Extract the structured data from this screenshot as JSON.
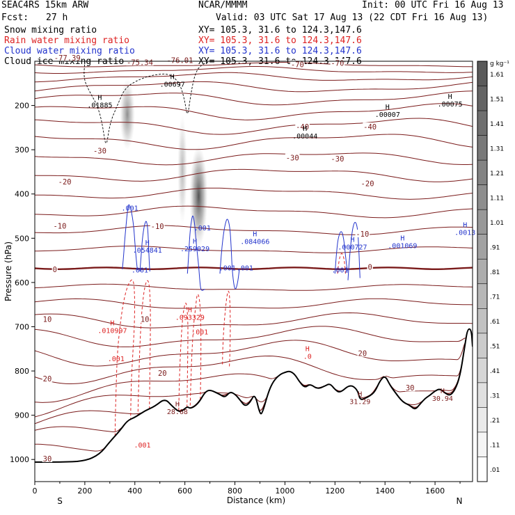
{
  "header": {
    "model": "SEAC4RS 15km ARW",
    "center": "NCAR/MMMM",
    "init": "Init: 00 UTC Fri 16 Aug 13",
    "fcst_label": "Fcst:",
    "fcst_value": "27 h",
    "valid": "Valid: 03 UTC Sat 17 Aug 13 (22 CDT Fri 16 Aug 13)"
  },
  "legend": [
    {
      "name": "Snow mixing ratio",
      "xy": "XY= 105.3, 31.6 to 124.3,147.6",
      "color": "#000000"
    },
    {
      "name": "Rain water mixing ratio",
      "xy": "XY= 105.3, 31.6 to 124.3,147.6",
      "color": "#dd2222"
    },
    {
      "name": "Cloud water mixing ratio",
      "xy": "XY= 105.3, 31.6 to 124.3,147.6",
      "color": "#2233cc"
    },
    {
      "name": "Cloud ice mixing ratio",
      "xy": "XY= 105.3, 31.6 to 124.3,147.6",
      "color": "#000000"
    }
  ],
  "colors": {
    "temperature": "#7a1a1a",
    "rain": "#dd2222",
    "cloud": "#2233cc",
    "terrain": "#000000"
  },
  "chart_data": {
    "type": "cross-section",
    "xlabel": "Distance (km)",
    "ylabel": "Pressure (hPa)",
    "xlim": [
      0,
      1750
    ],
    "ylim": [
      1050,
      100
    ],
    "x_ticks": [
      0,
      200,
      400,
      600,
      800,
      1000,
      1200,
      1400,
      1600
    ],
    "y_ticks": [
      200,
      300,
      400,
      500,
      600,
      700,
      800,
      900,
      1000
    ],
    "end_labels": {
      "left": "S",
      "right": "N"
    },
    "colorbar": {
      "unit": "g kg⁻¹",
      "ticks": [
        "1.61",
        "1.51",
        "1.41",
        "1.31",
        "1.21",
        "1.11",
        "1.01",
        ".91",
        ".81",
        ".71",
        ".61",
        ".51",
        ".41",
        ".31",
        ".21",
        ".11",
        ".01"
      ]
    },
    "temperature_labels": [
      {
        "x": 130,
        "p": 92,
        "text": "-77.39"
      },
      {
        "x": 420,
        "p": 102,
        "text": "-75.34"
      },
      {
        "x": 580,
        "p": 98,
        "text": "-76.01"
      },
      {
        "x": 1050,
        "p": 107,
        "text": "-70"
      },
      {
        "x": 1210,
        "p": 104,
        "text": "-70"
      },
      {
        "x": 1070,
        "p": 248,
        "text": "-40"
      },
      {
        "x": 1340,
        "p": 248,
        "text": "-40"
      },
      {
        "x": 260,
        "p": 302,
        "text": "-30"
      },
      {
        "x": 1030,
        "p": 318,
        "text": "-30"
      },
      {
        "x": 1210,
        "p": 320,
        "text": "-30"
      },
      {
        "x": 120,
        "p": 372,
        "text": "-20"
      },
      {
        "x": 1330,
        "p": 376,
        "text": "-20"
      },
      {
        "x": 100,
        "p": 472,
        "text": "-10"
      },
      {
        "x": 490,
        "p": 473,
        "text": "-10"
      },
      {
        "x": 1310,
        "p": 490,
        "text": "-10"
      },
      {
        "x": 80,
        "p": 570,
        "text": "0"
      },
      {
        "x": 1340,
        "p": 565,
        "text": "0"
      },
      {
        "x": 440,
        "p": 683,
        "text": "10"
      },
      {
        "x": 50,
        "p": 683,
        "text": "10"
      },
      {
        "x": 1310,
        "p": 760,
        "text": "20"
      },
      {
        "x": 510,
        "p": 805,
        "text": "20"
      },
      {
        "x": 50,
        "p": 817,
        "text": "20"
      },
      {
        "x": 1500,
        "p": 838,
        "text": "30"
      },
      {
        "x": 50,
        "p": 998,
        "text": "30"
      }
    ],
    "extrema_labels": [
      {
        "x": 260,
        "p": 192,
        "h": "H",
        "value": ".01885",
        "color": "black"
      },
      {
        "x": 550,
        "p": 145,
        "h": "H",
        "value": ".00697",
        "color": "black"
      },
      {
        "x": 1080,
        "p": 262,
        "h": "H",
        "value": ".00044",
        "color": "black"
      },
      {
        "x": 1410,
        "p": 213,
        "h": "H",
        "value": ".00007",
        "color": "black"
      },
      {
        "x": 1660,
        "p": 190,
        "h": "H",
        "value": ".00075",
        "color": "black"
      },
      {
        "x": 380,
        "p": 425,
        "h": "",
        "value": ".001",
        "color": "blue"
      },
      {
        "x": 450,
        "p": 520,
        "h": "H",
        "value": ".054841",
        "color": "blue"
      },
      {
        "x": 420,
        "p": 565,
        "h": "",
        "value": ".001",
        "color": "blue"
      },
      {
        "x": 640,
        "p": 517,
        "h": "H",
        "value": ".259029",
        "color": "blue"
      },
      {
        "x": 670,
        "p": 470,
        "h": "",
        "value": ".001",
        "color": "blue"
      },
      {
        "x": 880,
        "p": 500,
        "h": "H",
        "value": ".084066",
        "color": "blue"
      },
      {
        "x": 770,
        "p": 560,
        "h": "",
        "value": ".001",
        "color": "blue"
      },
      {
        "x": 840,
        "p": 560,
        "h": "",
        "value": ".001",
        "color": "blue"
      },
      {
        "x": 1220,
        "p": 565,
        "h": "",
        "value": ".001",
        "color": "blue"
      },
      {
        "x": 1270,
        "p": 513,
        "h": "H",
        "value": ".000727",
        "color": "blue"
      },
      {
        "x": 1470,
        "p": 510,
        "h": "H",
        "value": ".001069",
        "color": "blue"
      },
      {
        "x": 1720,
        "p": 480,
        "h": "H",
        "value": ".0013",
        "color": "blue"
      },
      {
        "x": 310,
        "p": 702,
        "h": "H",
        "value": ".010997",
        "color": "red"
      },
      {
        "x": 620,
        "p": 672,
        "h": "H",
        "value": ".093329",
        "color": "red"
      },
      {
        "x": 660,
        "p": 705,
        "h": "",
        "value": ".001",
        "color": "red"
      },
      {
        "x": 325,
        "p": 765,
        "h": "",
        "value": ".001",
        "color": "red"
      },
      {
        "x": 430,
        "p": 960,
        "h": "",
        "value": ".001",
        "color": "red"
      },
      {
        "x": 1090,
        "p": 760,
        "h": "H",
        "value": ".0",
        "color": "red"
      },
      {
        "x": 570,
        "p": 885,
        "h": "H",
        "value": "28.68",
        "color": "brown"
      },
      {
        "x": 1300,
        "p": 862,
        "h": "H",
        "value": "31.29",
        "color": "brown"
      },
      {
        "x": 1630,
        "p": 855,
        "h": "H",
        "value": "30.94",
        "color": "brown"
      }
    ],
    "terrain_pressure": [
      [
        0,
        1006
      ],
      [
        100,
        1006
      ],
      [
        200,
        1004
      ],
      [
        260,
        988
      ],
      [
        300,
        960
      ],
      [
        340,
        935
      ],
      [
        370,
        912
      ],
      [
        400,
        905
      ],
      [
        440,
        890
      ],
      [
        480,
        880
      ],
      [
        520,
        862
      ],
      [
        550,
        880
      ],
      [
        575,
        892
      ],
      [
        590,
        890
      ],
      [
        610,
        880
      ],
      [
        620,
        885
      ],
      [
        640,
        880
      ],
      [
        660,
        868
      ],
      [
        680,
        848
      ],
      [
        700,
        842
      ],
      [
        740,
        853
      ],
      [
        760,
        860
      ],
      [
        780,
        847
      ],
      [
        800,
        852
      ],
      [
        820,
        865
      ],
      [
        840,
        880
      ],
      [
        860,
        872
      ],
      [
        880,
        850
      ],
      [
        900,
        898
      ],
      [
        910,
        895
      ],
      [
        935,
        845
      ],
      [
        955,
        822
      ],
      [
        980,
        808
      ],
      [
        1000,
        803
      ],
      [
        1020,
        800
      ],
      [
        1040,
        808
      ],
      [
        1060,
        826
      ],
      [
        1080,
        838
      ],
      [
        1100,
        829
      ],
      [
        1130,
        841
      ],
      [
        1160,
        834
      ],
      [
        1180,
        828
      ],
      [
        1200,
        842
      ],
      [
        1220,
        850
      ],
      [
        1260,
        830
      ],
      [
        1290,
        842
      ],
      [
        1300,
        866
      ],
      [
        1320,
        862
      ],
      [
        1340,
        856
      ],
      [
        1360,
        847
      ],
      [
        1380,
        822
      ],
      [
        1400,
        810
      ],
      [
        1420,
        832
      ],
      [
        1440,
        848
      ],
      [
        1470,
        870
      ],
      [
        1500,
        878
      ],
      [
        1520,
        888
      ],
      [
        1540,
        875
      ],
      [
        1560,
        862
      ],
      [
        1580,
        855
      ],
      [
        1600,
        845
      ],
      [
        1620,
        840
      ],
      [
        1640,
        850
      ],
      [
        1660,
        856
      ],
      [
        1680,
        843
      ],
      [
        1700,
        812
      ],
      [
        1720,
        740
      ],
      [
        1730,
        705
      ],
      [
        1745,
        705
      ],
      [
        1750,
        745
      ]
    ],
    "zero_isotherm_pressure": 568,
    "temperature_isotherms": [
      {
        "p0": 108,
        "amp": 4
      },
      {
        "p0": 120,
        "amp": 6
      },
      {
        "p0": 136,
        "amp": 8
      },
      {
        "p0": 158,
        "amp": 10
      },
      {
        "p0": 184,
        "amp": 12
      },
      {
        "p0": 214,
        "amp": 14
      },
      {
        "p0": 246,
        "amp": 14
      },
      {
        "p0": 280,
        "amp": 14
      },
      {
        "p0": 318,
        "amp": 12
      },
      {
        "p0": 356,
        "amp": 12
      },
      {
        "p0": 398,
        "amp": 10
      },
      {
        "p0": 440,
        "amp": 10
      },
      {
        "p0": 482,
        "amp": 8
      },
      {
        "p0": 526,
        "amp": 6
      },
      {
        "p0": 612,
        "amp": 6
      },
      {
        "p0": 650,
        "amp": 10
      },
      {
        "p0": 688,
        "amp": 14
      },
      {
        "p0": 724,
        "amp": 18
      },
      {
        "p0": 760,
        "amp": 22
      },
      {
        "p0": 796,
        "amp": 24
      },
      {
        "p0": 835,
        "amp": 26
      },
      {
        "p0": 873,
        "amp": 26
      },
      {
        "p0": 912,
        "amp": 24
      },
      {
        "p0": 950,
        "amp": 22
      },
      {
        "p0": 988,
        "amp": 18
      }
    ],
    "cloud_ice_shading": [
      {
        "x": 370,
        "p_top": 140,
        "p_bot": 300,
        "w": 22,
        "strength": 0.55
      },
      {
        "x": 590,
        "p_top": 220,
        "p_bot": 470,
        "w": 14,
        "strength": 0.35
      },
      {
        "x": 655,
        "p_top": 290,
        "p_bot": 520,
        "w": 26,
        "strength": 0.85
      }
    ],
    "snow_contour": [
      [
        200,
        100
      ],
      [
        195,
        140
      ],
      [
        220,
        170
      ],
      [
        250,
        200
      ],
      [
        270,
        240
      ],
      [
        285,
        300
      ],
      [
        300,
        240
      ],
      [
        330,
        200
      ],
      [
        360,
        160
      ],
      [
        420,
        140
      ],
      [
        480,
        130
      ],
      [
        540,
        128
      ],
      [
        580,
        150
      ],
      [
        600,
        190
      ],
      [
        610,
        230
      ],
      [
        625,
        170
      ],
      [
        640,
        130
      ],
      [
        660,
        110
      ],
      [
        700,
        100
      ]
    ],
    "cloud_water_contours": [
      [
        [
          350,
          570
        ],
        [
          355,
          540
        ],
        [
          360,
          500
        ],
        [
          365,
          470
        ],
        [
          370,
          440
        ],
        [
          375,
          420
        ],
        [
          385,
          435
        ],
        [
          395,
          470
        ],
        [
          400,
          510
        ],
        [
          405,
          545
        ],
        [
          410,
          572
        ]
      ],
      [
        [
          420,
          575
        ],
        [
          425,
          540
        ],
        [
          430,
          500
        ],
        [
          438,
          470
        ],
        [
          446,
          458
        ],
        [
          452,
          480
        ],
        [
          455,
          520
        ],
        [
          458,
          560
        ],
        [
          460,
          575
        ]
      ],
      [
        [
          610,
          580
        ],
        [
          615,
          540
        ],
        [
          620,
          490
        ],
        [
          626,
          460
        ],
        [
          632,
          445
        ],
        [
          640,
          470
        ],
        [
          645,
          510
        ],
        [
          655,
          560
        ],
        [
          660,
          600
        ],
        [
          665,
          620
        ],
        [
          680,
          615
        ]
      ],
      [
        [
          740,
          580
        ],
        [
          745,
          540
        ],
        [
          752,
          500
        ],
        [
          760,
          470
        ],
        [
          770,
          452
        ],
        [
          780,
          475
        ],
        [
          785,
          520
        ],
        [
          790,
          580
        ],
        [
          800,
          620
        ],
        [
          810,
          605
        ],
        [
          818,
          570
        ]
      ],
      [
        [
          1200,
          580
        ],
        [
          1205,
          540
        ],
        [
          1212,
          500
        ],
        [
          1225,
          480
        ],
        [
          1235,
          500
        ],
        [
          1242,
          540
        ],
        [
          1250,
          575
        ]
      ],
      [
        [
          1252,
          595
        ],
        [
          1256,
          560
        ],
        [
          1262,
          520
        ],
        [
          1270,
          478
        ],
        [
          1280,
          460
        ],
        [
          1290,
          475
        ],
        [
          1295,
          520
        ],
        [
          1298,
          560
        ],
        [
          1300,
          590
        ]
      ]
    ],
    "rain_contours": [
      [
        [
          320,
          980
        ],
        [
          322,
          900
        ],
        [
          326,
          820
        ],
        [
          330,
          760
        ],
        [
          340,
          700
        ],
        [
          355,
          640
        ],
        [
          375,
          600
        ],
        [
          395,
          590
        ],
        [
          400,
          640
        ],
        [
          398,
          700
        ],
        [
          392,
          760
        ],
        [
          386,
          820
        ],
        [
          383,
          900
        ],
        [
          382,
          980
        ]
      ],
      [
        [
          410,
          980
        ],
        [
          412,
          900
        ],
        [
          416,
          820
        ],
        [
          420,
          740
        ],
        [
          428,
          660
        ],
        [
          440,
          605
        ],
        [
          455,
          590
        ],
        [
          462,
          640
        ],
        [
          462,
          720
        ],
        [
          460,
          800
        ],
        [
          458,
          900
        ],
        [
          456,
          980
        ]
      ],
      [
        [
          575,
          900
        ],
        [
          578,
          820
        ],
        [
          582,
          760
        ],
        [
          588,
          700
        ],
        [
          595,
          660
        ],
        [
          605,
          640
        ],
        [
          612,
          680
        ],
        [
          612,
          740
        ],
        [
          610,
          820
        ],
        [
          608,
          900
        ]
      ],
      [
        [
          620,
          900
        ],
        [
          624,
          820
        ],
        [
          628,
          760
        ],
        [
          634,
          700
        ],
        [
          642,
          660
        ],
        [
          650,
          620
        ],
        [
          660,
          640
        ],
        [
          664,
          700
        ],
        [
          664,
          780
        ],
        [
          662,
          860
        ],
        [
          660,
          900
        ]
      ],
      [
        [
          750,
          785
        ],
        [
          752,
          740
        ],
        [
          756,
          700
        ],
        [
          762,
          660
        ],
        [
          768,
          630
        ],
        [
          775,
          615
        ],
        [
          780,
          640
        ],
        [
          782,
          700
        ],
        [
          780,
          760
        ],
        [
          778,
          790
        ]
      ],
      [
        [
          1210,
          580
        ],
        [
          1214,
          560
        ],
        [
          1220,
          540
        ],
        [
          1228,
          532
        ],
        [
          1236,
          545
        ],
        [
          1240,
          565
        ],
        [
          1242,
          580
        ]
      ]
    ]
  }
}
